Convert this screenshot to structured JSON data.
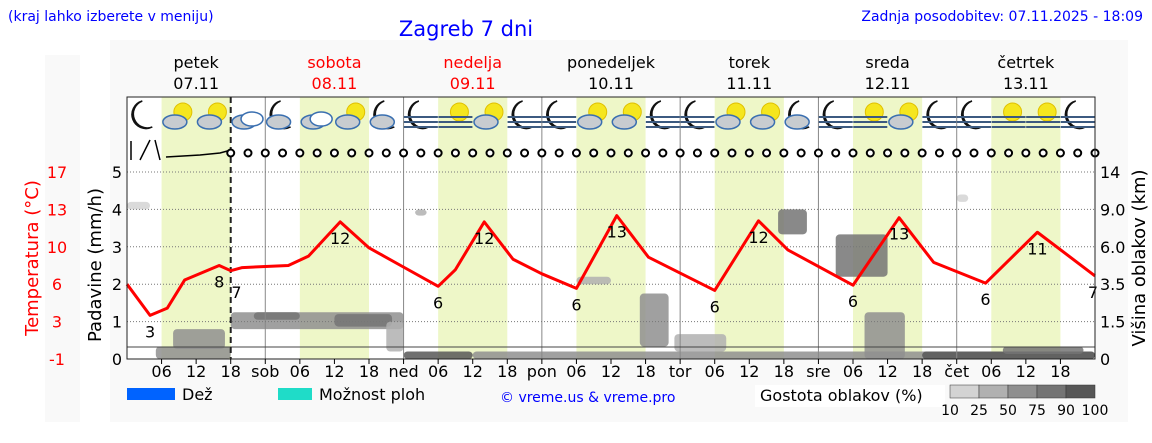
{
  "header": {
    "hint": "(kraj lahko izberete v meniju)",
    "title": "Zagreb 7 dni",
    "updated": "Zadnja posodobitev: 07.11.2025 - 18:09"
  },
  "days": [
    {
      "name": "petek",
      "date": "07.11",
      "weekend": false
    },
    {
      "name": "sobota",
      "date": "08.11",
      "weekend": true
    },
    {
      "name": "nedelja",
      "date": "09.11",
      "weekend": true
    },
    {
      "name": "ponedeljek",
      "date": "10.11",
      "weekend": false
    },
    {
      "name": "torek",
      "date": "11.11",
      "weekend": false
    },
    {
      "name": "sreda",
      "date": "12.11",
      "weekend": false
    },
    {
      "name": "četrtek",
      "date": "13.11",
      "weekend": false
    }
  ],
  "colors": {
    "title": "#0000ff",
    "temperature": "#ff0000",
    "weekend": "#ff0000",
    "daylight": "#eef7c8",
    "rain": "#0063ff",
    "showers": "#1fdcc8",
    "copyright": "#0000ff"
  },
  "chart_data": {
    "type": "line",
    "x_unit": "hours from 07.11 00:00",
    "xlim": [
      0,
      168
    ],
    "x_tick_labels": [
      "06",
      "12",
      "18",
      "sob",
      "06",
      "12",
      "18",
      "ned",
      "06",
      "12",
      "18",
      "pon",
      "06",
      "12",
      "18",
      "tor",
      "06",
      "12",
      "18",
      "sre",
      "06",
      "12",
      "18",
      "čet",
      "06",
      "12",
      "18"
    ],
    "now_hour": 18,
    "left_axis": {
      "label": "Padavine (mm/h)",
      "ticks": [
        "0",
        "1",
        "2",
        "3",
        "4",
        "5"
      ],
      "ylim": [
        0,
        5.5
      ]
    },
    "temp_axis": {
      "label": "Temperatura (°C)",
      "ticks": [
        "-1",
        "3",
        "6",
        "10",
        "13",
        "17"
      ],
      "ylim": [
        -1,
        17
      ]
    },
    "right_axis": {
      "label": "Višina oblakov (km)",
      "ticks": [
        "0",
        "1.5",
        "3.5",
        "6.0",
        "9.0",
        "14"
      ]
    },
    "grid": "dotted horizontal",
    "temperature": {
      "points": [
        [
          0,
          6.2
        ],
        [
          4,
          3.2
        ],
        [
          7,
          3.9
        ],
        [
          10,
          6.6
        ],
        [
          16,
          8
        ],
        [
          18,
          7.5
        ],
        [
          20,
          7.8
        ],
        [
          28,
          8
        ],
        [
          31.5,
          8.9
        ],
        [
          37,
          12.2
        ],
        [
          42,
          9.7
        ],
        [
          47.5,
          8
        ],
        [
          54,
          6
        ],
        [
          57,
          7.6
        ],
        [
          62,
          12.2
        ],
        [
          67,
          8.6
        ],
        [
          72,
          7.2
        ],
        [
          78,
          5.8
        ],
        [
          85,
          12.8
        ],
        [
          90.5,
          8.8
        ],
        [
          102,
          5.6
        ],
        [
          109.6,
          12.3
        ],
        [
          114.7,
          9.5
        ],
        [
          126,
          6.1
        ],
        [
          134,
          12.6
        ],
        [
          140,
          8.3
        ],
        [
          149,
          6.3
        ],
        [
          158,
          11.2
        ],
        [
          168,
          7
        ]
      ],
      "labels": [
        [
          4,
          "3"
        ],
        [
          16,
          "8"
        ],
        [
          19,
          "7"
        ],
        [
          37,
          "12"
        ],
        [
          54,
          "6"
        ],
        [
          62,
          "12"
        ],
        [
          78,
          "6"
        ],
        [
          85,
          "13"
        ],
        [
          102,
          "6"
        ],
        [
          109.6,
          "12"
        ],
        [
          126,
          "6"
        ],
        [
          134,
          "13"
        ],
        [
          149,
          "6"
        ],
        [
          158,
          "11"
        ],
        [
          168,
          "7"
        ]
      ]
    },
    "precipitation": [],
    "cloud_density_legend": {
      "label": "Gostota oblakov (%)",
      "levels": [
        "10",
        "25",
        "50",
        "75",
        "90",
        "100"
      ],
      "colors": [
        "#d3d3d3",
        "#b0b0b0",
        "#8f8f8f",
        "#747474",
        "#575757"
      ]
    },
    "clouds": [
      [
        0,
        4,
        9,
        10,
        10
      ],
      [
        5,
        18,
        0,
        0.5,
        50
      ],
      [
        8,
        17,
        0.4,
        1.2,
        50
      ],
      [
        18,
        48,
        1.2,
        2.0,
        50
      ],
      [
        22,
        30,
        1.6,
        2.0,
        75
      ],
      [
        36,
        46,
        1.3,
        1.9,
        75
      ],
      [
        45,
        48,
        0.3,
        1.5,
        25
      ],
      [
        48,
        60,
        0,
        0.3,
        90
      ],
      [
        50,
        52,
        8.5,
        9,
        25
      ],
      [
        60,
        168,
        0,
        0.3,
        50
      ],
      [
        78,
        84,
        3.5,
        4.0,
        25
      ],
      [
        89,
        94,
        0.5,
        3.0,
        50
      ],
      [
        95,
        104,
        0.3,
        1.0,
        25
      ],
      [
        113,
        118,
        7,
        9,
        75
      ],
      [
        123,
        132,
        4,
        7,
        75
      ],
      [
        128,
        135,
        0,
        2,
        50
      ],
      [
        138,
        168,
        0,
        0.3,
        90
      ],
      [
        152,
        166,
        0.2,
        0.5,
        75
      ],
      [
        144,
        146,
        10,
        11,
        10
      ]
    ],
    "weather_icons": [
      "moon",
      "sun-cloud",
      "sun-cloud",
      "overcast",
      "moon-cloud",
      "overcast",
      "sun-cloud",
      "moon-cloud",
      "moon-fog",
      "sun-fog",
      "sun-cloud",
      "moon-fog",
      "moon-fog",
      "sun-cloud",
      "sun-cloud",
      "moon-fog",
      "moon-fog",
      "sun-cloud",
      "sun-cloud",
      "moon-cloud",
      "moon-fog",
      "sun-fog",
      "sun-cloud",
      "moon-fog",
      "moon-fog",
      "sun-fog",
      "sun-fog",
      "moon-fog"
    ],
    "wind": "barbs first hours, then calm"
  },
  "legend": {
    "rain": "Dež",
    "showers": "Možnost ploh",
    "copyright": "© vreme.us & vreme.pro"
  }
}
